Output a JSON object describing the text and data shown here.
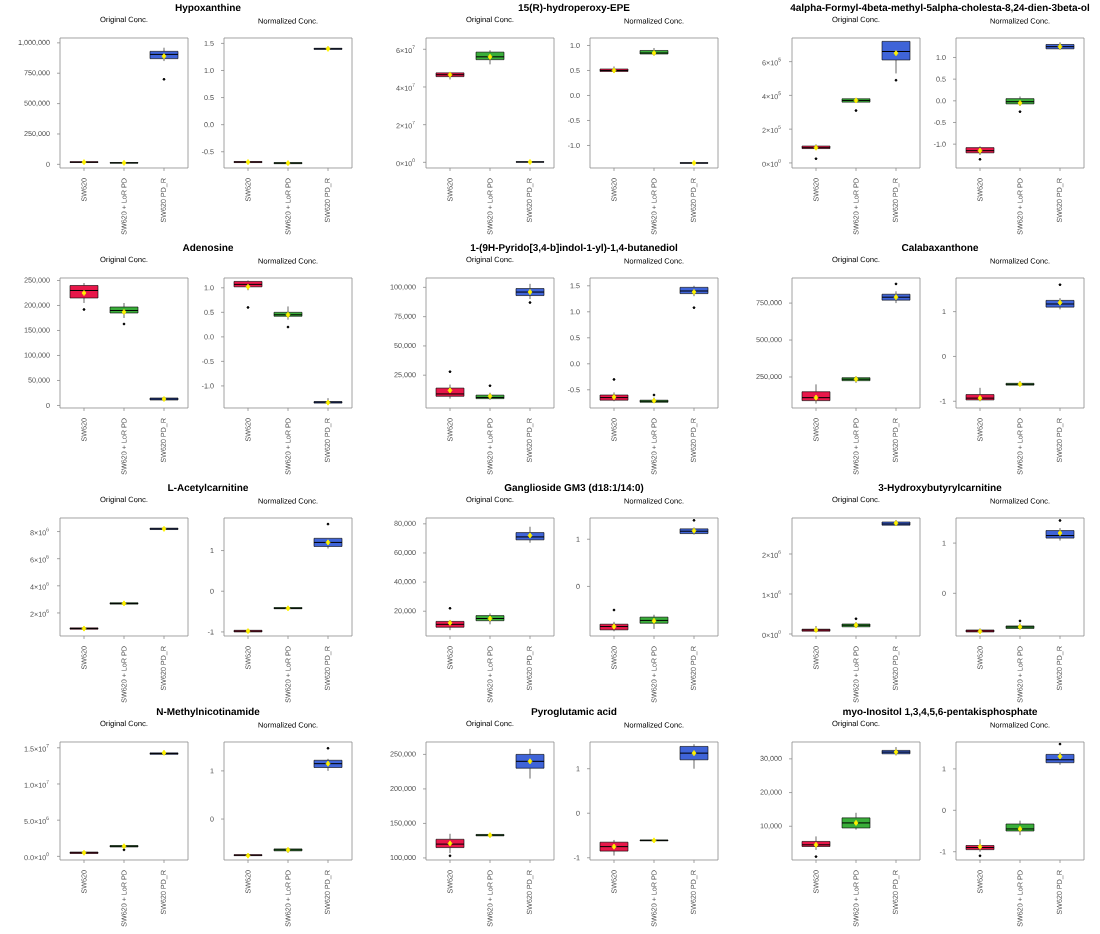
{
  "chart_data": [
    {
      "type": "box",
      "title": "Hypoxanthine",
      "subtitle": "Original Conc.",
      "categories": [
        "SW620",
        "SW620 + LoR PD",
        "SW620 PD_R"
      ],
      "colors": [
        "#e8174a",
        "#3aae3a",
        "#3f64d8"
      ],
      "ylim": [
        -30000,
        1040000
      ],
      "yticks": [
        0,
        {
          "value": 250000,
          "label": "250,000"
        },
        {
          "value": 500000,
          "label": "500,000"
        },
        {
          "value": 750000,
          "label": "750,000"
        },
        {
          "value": 1000000,
          "label": "1,000,000"
        }
      ],
      "boxes": [
        {
          "low": 10000,
          "q1": 15000,
          "median": 18000,
          "q3": 22000,
          "high": 28000,
          "mean": 18000
        },
        {
          "low": 5000,
          "q1": 10000,
          "median": 12000,
          "q3": 15000,
          "high": 20000,
          "mean": 12000
        },
        {
          "low": 850000,
          "q1": 870000,
          "median": 905000,
          "q3": 930000,
          "high": 960000,
          "mean": 890000,
          "outliers": [
            700000
          ]
        }
      ]
    },
    {
      "type": "box",
      "subtitle": "Normalized Conc.",
      "categories": [
        "SW620",
        "SW620 + LoR PD",
        "SW620 PD_R"
      ],
      "colors": [
        "#e8174a",
        "#3aae3a",
        "#3f64d8"
      ],
      "ylim": [
        -0.8,
        1.6
      ],
      "yticks": [
        -0.5,
        {
          "value": 0,
          "label": "0.0"
        },
        0.5,
        {
          "value": 1,
          "label": "1.0"
        },
        1.5
      ],
      "boxes": [
        {
          "low": -0.71,
          "q1": -0.7,
          "median": -0.69,
          "q3": -0.68,
          "high": -0.67,
          "mean": -0.69
        },
        {
          "low": -0.73,
          "q1": -0.72,
          "median": -0.71,
          "q3": -0.7,
          "high": -0.69,
          "mean": -0.71
        },
        {
          "low": 1.38,
          "q1": 1.39,
          "median": 1.4,
          "q3": 1.41,
          "high": 1.44,
          "mean": 1.4
        }
      ]
    },
    {
      "type": "box",
      "title": "15(R)-hydroperoxy-EPE",
      "subtitle": "Original Conc.",
      "categories": [
        "SW620",
        "SW620 + LoR PD",
        "SW620 PD_R"
      ],
      "colors": [
        "#e8174a",
        "#3aae3a",
        "#3f64d8"
      ],
      "ylim": [
        -3000000,
        66000000
      ],
      "yticks": [
        {
          "value": 0,
          "label": "0×10$^{0}$"
        },
        {
          "value": 20000000,
          "label": "2×10$^{7}$"
        },
        {
          "value": 40000000,
          "label": "4×10$^{7}$"
        },
        {
          "value": 60000000,
          "label": "6×10$^{7}$"
        }
      ],
      "boxes": [
        {
          "low": 44000000,
          "q1": 45500000,
          "median": 46500000,
          "q3": 47500000,
          "high": 48000000,
          "mean": 46500000
        },
        {
          "low": 52000000,
          "q1": 54500000,
          "median": 56000000,
          "q3": 58500000,
          "high": 59500000,
          "mean": 56000000
        },
        {
          "low": 0,
          "q1": 100000,
          "median": 200000,
          "q3": 300000,
          "high": 500000,
          "mean": 200000
        }
      ]
    },
    {
      "type": "box",
      "subtitle": "Normalized Conc.",
      "categories": [
        "SW620",
        "SW620 + LoR PD",
        "SW620 PD_R"
      ],
      "colors": [
        "#e8174a",
        "#3aae3a",
        "#3f64d8"
      ],
      "ylim": [
        -1.45,
        1.15
      ],
      "yticks": [
        {
          "value": -1,
          "label": "-1.0"
        },
        -0.5,
        {
          "value": 0,
          "label": "0.0"
        },
        0.5,
        {
          "value": 1,
          "label": "1.0"
        }
      ],
      "boxes": [
        {
          "low": 0.45,
          "q1": 0.48,
          "median": 0.5,
          "q3": 0.53,
          "high": 0.58,
          "mean": 0.5
        },
        {
          "low": 0.8,
          "q1": 0.83,
          "median": 0.85,
          "q3": 0.9,
          "high": 0.95,
          "mean": 0.85
        },
        {
          "low": -1.36,
          "q1": -1.355,
          "median": -1.35,
          "q3": -1.345,
          "high": -1.34,
          "mean": -1.35
        }
      ]
    },
    {
      "type": "box",
      "title": "4alpha-Formyl-4beta-methyl-5alpha-cholesta-8,24-dien-3beta-ol",
      "subtitle": "Original Conc.",
      "categories": [
        "SW620",
        "SW620 + LoR PD",
        "SW620 PD_R"
      ],
      "colors": [
        "#e8174a",
        "#3aae3a",
        "#3f64d8"
      ],
      "ylim": [
        -30000,
        740000
      ],
      "yticks": [
        {
          "value": 0,
          "label": "0×10$^{0}$"
        },
        {
          "value": 200000,
          "label": "2×10$^{5}$"
        },
        {
          "value": 400000,
          "label": "4×10$^{5}$"
        },
        {
          "value": 600000,
          "label": "6×10$^{5}$"
        }
      ],
      "boxes": [
        {
          "low": 80000,
          "q1": 85000,
          "median": 90000,
          "q3": 100000,
          "high": 110000,
          "mean": 90000,
          "outliers": [
            25000
          ]
        },
        {
          "low": 355000,
          "q1": 360000,
          "median": 370000,
          "q3": 380000,
          "high": 385000,
          "mean": 370000,
          "outliers": [
            310000
          ]
        },
        {
          "low": 530000,
          "q1": 610000,
          "median": 660000,
          "q3": 720000,
          "high": 720000,
          "mean": 650000,
          "outliers": [
            490000
          ]
        }
      ]
    },
    {
      "type": "box",
      "subtitle": "Normalized Conc.",
      "categories": [
        "SW620",
        "SW620 + LoR PD",
        "SW620 PD_R"
      ],
      "colors": [
        "#e8174a",
        "#3aae3a",
        "#3f64d8"
      ],
      "ylim": [
        -1.55,
        1.45
      ],
      "yticks": [
        {
          "value": -1,
          "label": "-1.0"
        },
        -0.5,
        {
          "value": 0,
          "label": "0.0"
        },
        0.5,
        {
          "value": 1,
          "label": "1.0"
        }
      ],
      "boxes": [
        {
          "low": -1.25,
          "q1": -1.2,
          "median": -1.15,
          "q3": -1.08,
          "high": -1.05,
          "mean": -1.15,
          "outliers": [
            -1.35
          ]
        },
        {
          "low": -0.12,
          "q1": -0.07,
          "median": -0.02,
          "q3": 0.05,
          "high": 0.1,
          "mean": -0.05,
          "outliers": [
            -0.25
          ]
        },
        {
          "low": 1.18,
          "q1": 1.2,
          "median": 1.25,
          "q3": 1.3,
          "high": 1.35,
          "mean": 1.25
        }
      ]
    },
    {
      "type": "box",
      "title": "Adenosine",
      "subtitle": "Original Conc.",
      "categories": [
        "SW620",
        "SW620 + LoR PD",
        "SW620 PD_R"
      ],
      "colors": [
        "#e8174a",
        "#3aae3a",
        "#3f64d8"
      ],
      "ylim": [
        -5000,
        255000
      ],
      "yticks": [
        0,
        {
          "value": 50000,
          "label": "50,000"
        },
        {
          "value": 100000,
          "label": "100,000"
        },
        {
          "value": 150000,
          "label": "150,000"
        },
        {
          "value": 200000,
          "label": "200,000"
        },
        {
          "value": 250000,
          "label": "250,000"
        }
      ],
      "boxes": [
        {
          "low": 205000,
          "q1": 215000,
          "median": 230000,
          "q3": 240000,
          "high": 245000,
          "mean": 225000,
          "outliers": [
            192000
          ]
        },
        {
          "low": 175000,
          "q1": 185000,
          "median": 190000,
          "q3": 197000,
          "high": 205000,
          "mean": 187000,
          "outliers": [
            163000
          ]
        },
        {
          "low": 10000,
          "q1": 11000,
          "median": 13000,
          "q3": 15000,
          "high": 17000,
          "mean": 13000
        }
      ]
    },
    {
      "type": "box",
      "subtitle": "Normalized Conc.",
      "categories": [
        "SW620",
        "SW620 + LoR PD",
        "SW620 PD_R"
      ],
      "colors": [
        "#e8174a",
        "#3aae3a",
        "#3f64d8"
      ],
      "ylim": [
        -1.45,
        1.2
      ],
      "yticks": [
        {
          "value": -1,
          "label": "-1.0"
        },
        -0.5,
        {
          "value": 0,
          "label": "0.0"
        },
        0.5,
        {
          "value": 1,
          "label": "1.0"
        }
      ],
      "boxes": [
        {
          "low": 0.95,
          "q1": 1.02,
          "median": 1.07,
          "q3": 1.13,
          "high": 1.15,
          "mean": 1.02,
          "outliers": [
            0.6
          ]
        },
        {
          "low": 0.35,
          "q1": 0.42,
          "median": 0.45,
          "q3": 0.5,
          "high": 0.62,
          "mean": 0.45,
          "outliers": [
            0.2
          ]
        },
        {
          "low": -1.37,
          "q1": -1.35,
          "median": -1.33,
          "q3": -1.32,
          "high": -1.25,
          "mean": -1.34
        }
      ]
    },
    {
      "type": "box",
      "title": "1-(9H-Pyrido[3,4-b]indol-1-yl)-1,4-butanediol",
      "subtitle": "Original Conc.",
      "categories": [
        "SW620",
        "SW620 + LoR PD",
        "SW620 PD_R"
      ],
      "colors": [
        "#e8174a",
        "#3aae3a",
        "#3f64d8"
      ],
      "ylim": [
        -3000,
        108000
      ],
      "yticks": [
        {
          "value": 25000,
          "label": "25,000"
        },
        {
          "value": 50000,
          "label": "50,000"
        },
        {
          "value": 75000,
          "label": "75,000"
        },
        {
          "value": 100000,
          "label": "100,000"
        }
      ],
      "boxes": [
        {
          "low": 5000,
          "q1": 7000,
          "median": 9000,
          "q3": 14000,
          "high": 17000,
          "mean": 12000,
          "outliers": [
            28000
          ]
        },
        {
          "low": 4000,
          "q1": 5000,
          "median": 6000,
          "q3": 8000,
          "high": 10000,
          "mean": 7000,
          "outliers": [
            16000
          ]
        },
        {
          "low": 90000,
          "q1": 93000,
          "median": 96000,
          "q3": 99000,
          "high": 103000,
          "mean": 96000,
          "outliers": [
            87000
          ]
        }
      ]
    },
    {
      "type": "box",
      "subtitle": "Normalized Conc.",
      "categories": [
        "SW620",
        "SW620 + LoR PD",
        "SW620 PD_R"
      ],
      "colors": [
        "#e8174a",
        "#3aae3a",
        "#3f64d8"
      ],
      "ylim": [
        -0.85,
        1.65
      ],
      "yticks": [
        -0.5,
        {
          "value": 0,
          "label": "0.0"
        },
        0.5,
        {
          "value": 1,
          "label": "1.0"
        },
        1.5
      ],
      "boxes": [
        {
          "low": -0.72,
          "q1": -0.7,
          "median": -0.65,
          "q3": -0.6,
          "high": -0.55,
          "mean": -0.64,
          "outliers": [
            -0.3
          ]
        },
        {
          "low": -0.75,
          "q1": -0.74,
          "median": -0.72,
          "q3": -0.7,
          "high": -0.65,
          "mean": -0.71,
          "outliers": [
            -0.6
          ]
        },
        {
          "low": 1.3,
          "q1": 1.35,
          "median": 1.4,
          "q3": 1.47,
          "high": 1.5,
          "mean": 1.38,
          "outliers": [
            1.08
          ]
        }
      ]
    },
    {
      "type": "box",
      "title": "Calabaxanthone",
      "subtitle": "Original Conc.",
      "categories": [
        "SW620",
        "SW620 + LoR PD",
        "SW620 PD_R"
      ],
      "colors": [
        "#e8174a",
        "#3aae3a",
        "#3f64d8"
      ],
      "ylim": [
        40000,
        920000
      ],
      "yticks": [
        {
          "value": 250000,
          "label": "250,000"
        },
        {
          "value": 500000,
          "label": "500,000"
        },
        {
          "value": 750000,
          "label": "750,000"
        }
      ],
      "boxes": [
        {
          "low": 70000,
          "q1": 90000,
          "median": 110000,
          "q3": 150000,
          "high": 200000,
          "mean": 110000
        },
        {
          "low": 210000,
          "q1": 225000,
          "median": 235000,
          "q3": 245000,
          "high": 255000,
          "mean": 235000
        },
        {
          "low": 750000,
          "q1": 770000,
          "median": 790000,
          "q3": 810000,
          "high": 830000,
          "mean": 790000,
          "outliers": [
            880000
          ]
        }
      ]
    },
    {
      "type": "box",
      "subtitle": "Normalized Conc.",
      "categories": [
        "SW620",
        "SW620 + LoR PD",
        "SW620 PD_R"
      ],
      "colors": [
        "#e8174a",
        "#3aae3a",
        "#3f64d8"
      ],
      "ylim": [
        -1.15,
        1.75
      ],
      "yticks": [
        -1,
        0,
        1
      ],
      "boxes": [
        {
          "low": -1.0,
          "q1": -0.97,
          "median": -0.93,
          "q3": -0.85,
          "high": -0.7,
          "mean": -0.93
        },
        {
          "low": -0.66,
          "q1": -0.64,
          "median": -0.62,
          "q3": -0.6,
          "high": -0.55,
          "mean": -0.62
        },
        {
          "low": 1.05,
          "q1": 1.1,
          "median": 1.17,
          "q3": 1.25,
          "high": 1.3,
          "mean": 1.2,
          "outliers": [
            1.6
          ]
        }
      ]
    },
    {
      "type": "box",
      "title": "L-Acetylcarnitine",
      "subtitle": "Original Conc.",
      "categories": [
        "SW620",
        "SW620 + LoR PD",
        "SW620 PD_R"
      ],
      "colors": [
        "#e8174a",
        "#3aae3a",
        "#3f64d8"
      ],
      "ylim": [
        300000,
        9000000
      ],
      "yticks": [
        {
          "value": 2000000,
          "label": "2×10$^{6}$"
        },
        {
          "value": 4000000,
          "label": "4×10$^{6}$"
        },
        {
          "value": 6000000,
          "label": "6×10$^{6}$"
        },
        {
          "value": 8000000,
          "label": "8×10$^{6}$"
        }
      ],
      "boxes": [
        {
          "low": 700000,
          "q1": 800000,
          "median": 850000,
          "q3": 900000,
          "high": 1000000,
          "mean": 850000
        },
        {
          "low": 2600000,
          "q1": 2650000,
          "median": 2700000,
          "q3": 2750000,
          "high": 2800000,
          "mean": 2700000
        },
        {
          "low": 8100000,
          "q1": 8150000,
          "median": 8200000,
          "q3": 8250000,
          "high": 8300000,
          "mean": 8200000
        }
      ]
    },
    {
      "type": "box",
      "subtitle": "Normalized Conc.",
      "categories": [
        "SW620",
        "SW620 + LoR PD",
        "SW620 PD_R"
      ],
      "colors": [
        "#e8174a",
        "#3aae3a",
        "#3f64d8"
      ],
      "ylim": [
        -1.1,
        1.8
      ],
      "yticks": [
        -1,
        0,
        1
      ],
      "boxes": [
        {
          "low": -1.02,
          "q1": -1.0,
          "median": -0.98,
          "q3": -0.96,
          "high": -0.93,
          "mean": -0.98
        },
        {
          "low": -0.45,
          "q1": -0.43,
          "median": -0.42,
          "q3": -0.4,
          "high": -0.37,
          "mean": -0.42
        },
        {
          "low": 1.05,
          "q1": 1.1,
          "median": 1.2,
          "q3": 1.3,
          "high": 1.3,
          "mean": 1.2,
          "outliers": [
            1.65
          ]
        }
      ]
    },
    {
      "type": "box",
      "title": "Ganglioside GM3 (d18:1/14:0)",
      "subtitle": "Original Conc.",
      "categories": [
        "SW620",
        "SW620 + LoR PD",
        "SW620 PD_R"
      ],
      "colors": [
        "#e8174a",
        "#3aae3a",
        "#3f64d8"
      ],
      "ylim": [
        3000,
        84000
      ],
      "yticks": [
        {
          "value": 20000,
          "label": "20,000"
        },
        {
          "value": 40000,
          "label": "40,000"
        },
        {
          "value": 60000,
          "label": "60,000"
        },
        {
          "value": 80000,
          "label": "80,000"
        }
      ],
      "boxes": [
        {
          "low": 7000,
          "q1": 9000,
          "median": 11000,
          "q3": 13000,
          "high": 14000,
          "mean": 12000,
          "outliers": [
            22000
          ]
        },
        {
          "low": 11000,
          "q1": 13500,
          "median": 15000,
          "q3": 17000,
          "high": 18500,
          "mean": 15000
        },
        {
          "low": 67000,
          "q1": 69000,
          "median": 71000,
          "q3": 74000,
          "high": 78000,
          "mean": 72000
        }
      ]
    },
    {
      "type": "box",
      "subtitle": "Normalized Conc.",
      "categories": [
        "SW620",
        "SW620 + LoR PD",
        "SW620 PD_R"
      ],
      "colors": [
        "#e8174a",
        "#3aae3a",
        "#3f64d8"
      ],
      "ylim": [
        -1.05,
        1.45
      ],
      "yticks": [
        0,
        1
      ],
      "boxes": [
        {
          "low": -0.95,
          "q1": -0.92,
          "median": -0.85,
          "q3": -0.8,
          "high": -0.75,
          "mean": -0.85,
          "outliers": [
            -0.5
          ]
        },
        {
          "low": -0.9,
          "q1": -0.78,
          "median": -0.72,
          "q3": -0.65,
          "high": -0.6,
          "mean": -0.73
        },
        {
          "low": 1.1,
          "q1": 1.12,
          "median": 1.17,
          "q3": 1.22,
          "high": 1.25,
          "mean": 1.18,
          "outliers": [
            1.4
          ]
        }
      ]
    },
    {
      "type": "box",
      "title": "3-Hydroxybutyrylcarnitine",
      "subtitle": "Original Conc.",
      "categories": [
        "SW620",
        "SW620 + LoR PD",
        "SW620 PD_R"
      ],
      "colors": [
        "#e8174a",
        "#3aae3a",
        "#3f64d8"
      ],
      "ylim": [
        -50000,
        2900000
      ],
      "yticks": [
        {
          "value": 0,
          "label": "0×10$^{0}$"
        },
        {
          "value": 1000000,
          "label": "1×10$^{6}$"
        },
        {
          "value": 2000000,
          "label": "2×10$^{6}$"
        }
      ],
      "boxes": [
        {
          "low": 50000,
          "q1": 70000,
          "median": 100000,
          "q3": 120000,
          "high": 200000,
          "mean": 100000
        },
        {
          "low": 150000,
          "q1": 180000,
          "median": 220000,
          "q3": 250000,
          "high": 300000,
          "mean": 220000,
          "outliers": [
            380000
          ]
        },
        {
          "low": 2700000,
          "q1": 2720000,
          "median": 2750000,
          "q3": 2800000,
          "high": 2850000,
          "mean": 2770000
        }
      ]
    },
    {
      "type": "box",
      "subtitle": "Normalized Conc.",
      "categories": [
        "SW620",
        "SW620 + LoR PD",
        "SW620 PD_R"
      ],
      "colors": [
        "#e8174a",
        "#3aae3a",
        "#3f64d8"
      ],
      "ylim": [
        -0.85,
        1.5
      ],
      "yticks": [
        0,
        1
      ],
      "boxes": [
        {
          "low": -0.78,
          "q1": -0.77,
          "median": -0.75,
          "q3": -0.73,
          "high": -0.7,
          "mean": -0.76
        },
        {
          "low": -0.72,
          "q1": -0.7,
          "median": -0.67,
          "q3": -0.65,
          "high": -0.6,
          "mean": -0.67,
          "outliers": [
            -0.55
          ]
        },
        {
          "low": 1.05,
          "q1": 1.1,
          "median": 1.15,
          "q3": 1.25,
          "high": 1.3,
          "mean": 1.2,
          "outliers": [
            1.45
          ]
        }
      ]
    },
    {
      "type": "box",
      "title": "N-Methylnicotinamide",
      "subtitle": "Original Conc.",
      "categories": [
        "SW620",
        "SW620 + LoR PD",
        "SW620 PD_R"
      ],
      "colors": [
        "#e8174a",
        "#3aae3a",
        "#3f64d8"
      ],
      "ylim": [
        -500000,
        15800000
      ],
      "yticks": [
        {
          "value": 0,
          "label": "0.0×10$^{0}$"
        },
        {
          "value": 5000000,
          "label": "5.0×10$^{6}$"
        },
        {
          "value": 10000000,
          "label": "1.0×10$^{7}$"
        },
        {
          "value": 15000000,
          "label": "1.5×10$^{7}$"
        }
      ],
      "boxes": [
        {
          "low": 300000,
          "q1": 400000,
          "median": 500000,
          "q3": 600000,
          "high": 700000,
          "mean": 500000
        },
        {
          "low": 1000000,
          "q1": 1300000,
          "median": 1400000,
          "q3": 1500000,
          "high": 1600000,
          "mean": 1400000,
          "outliers": [
            900000
          ]
        },
        {
          "low": 14000000,
          "q1": 14100000,
          "median": 14200000,
          "q3": 14300000,
          "high": 14600000,
          "mean": 14300000
        }
      ]
    },
    {
      "type": "box",
      "subtitle": "Normalized Conc.",
      "categories": [
        "SW620",
        "SW620 + LoR PD",
        "SW620 PD_R"
      ],
      "colors": [
        "#e8174a",
        "#3aae3a",
        "#3f64d8"
      ],
      "ylim": [
        -0.85,
        1.6
      ],
      "yticks": [
        0,
        1
      ],
      "boxes": [
        {
          "low": -0.78,
          "q1": -0.76,
          "median": -0.75,
          "q3": -0.74,
          "high": -0.72,
          "mean": -0.76
        },
        {
          "low": -0.7,
          "q1": -0.66,
          "median": -0.64,
          "q3": -0.62,
          "high": -0.6,
          "mean": -0.64
        },
        {
          "low": 1.0,
          "q1": 1.07,
          "median": 1.15,
          "q3": 1.22,
          "high": 1.25,
          "mean": 1.15,
          "outliers": [
            1.47
          ]
        }
      ]
    },
    {
      "type": "box",
      "title": "Pyroglutamic acid",
      "subtitle": "Original Conc.",
      "categories": [
        "SW620",
        "SW620 + LoR PD",
        "SW620 PD_R"
      ],
      "colors": [
        "#e8174a",
        "#3aae3a",
        "#3f64d8"
      ],
      "ylim": [
        97000,
        268000
      ],
      "yticks": [
        {
          "value": 100000,
          "label": "100,000"
        },
        {
          "value": 150000,
          "label": "150,000"
        },
        {
          "value": 200000,
          "label": "200,000"
        },
        {
          "value": 250000,
          "label": "250,000"
        }
      ],
      "boxes": [
        {
          "low": 107000,
          "q1": 115000,
          "median": 120000,
          "q3": 127000,
          "high": 135000,
          "mean": 121000,
          "outliers": [
            103000
          ]
        },
        {
          "low": 130000,
          "q1": 132000,
          "median": 133000,
          "q3": 134000,
          "high": 136000,
          "mean": 133000
        },
        {
          "low": 215000,
          "q1": 230000,
          "median": 240000,
          "q3": 250000,
          "high": 258000,
          "mean": 240000
        }
      ]
    },
    {
      "type": "box",
      "subtitle": "Normalized Conc.",
      "categories": [
        "SW620",
        "SW620 + LoR PD",
        "SW620 PD_R"
      ],
      "colors": [
        "#e8174a",
        "#3aae3a",
        "#3f64d8"
      ],
      "ylim": [
        -1.05,
        1.6
      ],
      "yticks": [
        -1,
        0,
        1
      ],
      "boxes": [
        {
          "low": -0.95,
          "q1": -0.85,
          "median": -0.75,
          "q3": -0.65,
          "high": -0.6,
          "mean": -0.75
        },
        {
          "low": -0.63,
          "q1": -0.62,
          "median": -0.61,
          "q3": -0.6,
          "high": -0.59,
          "mean": -0.61
        },
        {
          "low": 1.0,
          "q1": 1.2,
          "median": 1.35,
          "q3": 1.5,
          "high": 1.55,
          "mean": 1.35
        }
      ]
    },
    {
      "type": "box",
      "title": "myo-Inositol 1,3,4,5,6-pentakisphosphate",
      "subtitle": "Original Conc.",
      "categories": [
        "SW620",
        "SW620 + LoR PD",
        "SW620 PD_R"
      ],
      "colors": [
        "#e8174a",
        "#3aae3a",
        "#3f64d8"
      ],
      "ylim": [
        0,
        35000
      ],
      "yticks": [
        {
          "value": 10000,
          "label": "10,000"
        },
        {
          "value": 20000,
          "label": "20,000"
        },
        {
          "value": 30000,
          "label": "30,000"
        }
      ],
      "boxes": [
        {
          "low": 3000,
          "q1": 4000,
          "median": 4500,
          "q3": 5500,
          "high": 7000,
          "mean": 4500,
          "outliers": [
            1000
          ]
        },
        {
          "low": 9000,
          "q1": 9500,
          "median": 11000,
          "q3": 12500,
          "high": 14000,
          "mean": 11000
        },
        {
          "low": 31000,
          "q1": 31500,
          "median": 32000,
          "q3": 32500,
          "high": 33500,
          "mean": 32000
        }
      ]
    },
    {
      "type": "box",
      "subtitle": "Normalized Conc.",
      "categories": [
        "SW620",
        "SW620 + LoR PD",
        "SW620 PD_R"
      ],
      "colors": [
        "#e8174a",
        "#3aae3a",
        "#3f64d8"
      ],
      "ylim": [
        -1.2,
        1.65
      ],
      "yticks": [
        -1,
        0,
        1
      ],
      "boxes": [
        {
          "low": -1.0,
          "q1": -0.95,
          "median": -0.9,
          "q3": -0.85,
          "high": -0.7,
          "mean": -0.88,
          "outliers": [
            -1.1
          ]
        },
        {
          "low": -0.6,
          "q1": -0.5,
          "median": -0.45,
          "q3": -0.33,
          "high": -0.25,
          "mean": -0.45
        },
        {
          "low": 1.1,
          "q1": 1.15,
          "median": 1.22,
          "q3": 1.35,
          "high": 1.4,
          "mean": 1.3,
          "outliers": [
            1.6
          ]
        }
      ]
    }
  ]
}
